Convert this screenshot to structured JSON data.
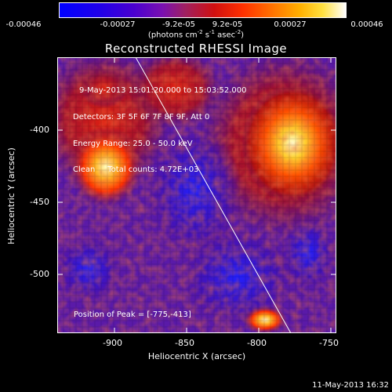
{
  "colorbar": {
    "tick_labels": [
      "-0.00046",
      "-0.00027",
      "-9.2e-05",
      "9.2e-05",
      "0.00027",
      "0.00046"
    ],
    "unit_main": "(photons cm",
    "unit_sup1": "-2",
    "unit_mid": " s",
    "unit_sup2": "-1",
    "unit_mid2": " asec",
    "unit_sup3": "-2",
    "unit_end": ")"
  },
  "plot": {
    "title": "Reconstructed RHESSI Image",
    "info_lines": [
      "9-May-2013 15:01:20.000 to 15:03:52.000",
      "Detectors: 3F 5F 6F 7F 8F 9F, Att 0",
      "Energy Range: 25.0 - 50.0 keV",
      "Clean     Total counts: 4.72E+03"
    ],
    "peak_label": "Position of Peak = [-775,-413]",
    "x_axis_label": "Heliocentric X (arcsec)",
    "y_axis_label": "Heliocentric Y (arcsec)",
    "x_ticks": [
      "-900",
      "-850",
      "-800",
      "-750"
    ],
    "y_ticks": [
      "-400",
      "-450",
      "-500"
    ]
  },
  "footer": {
    "timestamp": "11-May-2013 16:32"
  },
  "colors": {
    "background": "#000000",
    "foreground": "#ffffff"
  }
}
